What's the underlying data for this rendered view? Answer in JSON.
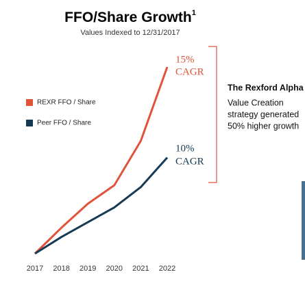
{
  "chart_data": {
    "type": "line",
    "title": "FFO/Share Growth",
    "title_footnote": "1",
    "subtitle": "Values Indexed to 12/31/2017",
    "categories": [
      "2017",
      "2018",
      "2019",
      "2020",
      "2021",
      "2022"
    ],
    "series": [
      {
        "name": "REXR FFO / Share",
        "color": "#e0533a",
        "values": [
          100,
          114,
          127,
          137,
          161,
          201
        ]
      },
      {
        "name": "Peer FFO / Share",
        "color": "#163a54",
        "values": [
          100,
          109,
          117,
          125,
          136,
          152
        ]
      }
    ],
    "ylim": [
      100,
      201
    ],
    "annotations": [
      {
        "pct": "15%",
        "label": "CAGR"
      },
      {
        "pct": "10%",
        "label": "CAGR"
      }
    ],
    "side_note": {
      "heading": "The Rexford Alpha",
      "lines": [
        "Value Creation",
        "strategy generated",
        "50% higher growth"
      ]
    }
  }
}
